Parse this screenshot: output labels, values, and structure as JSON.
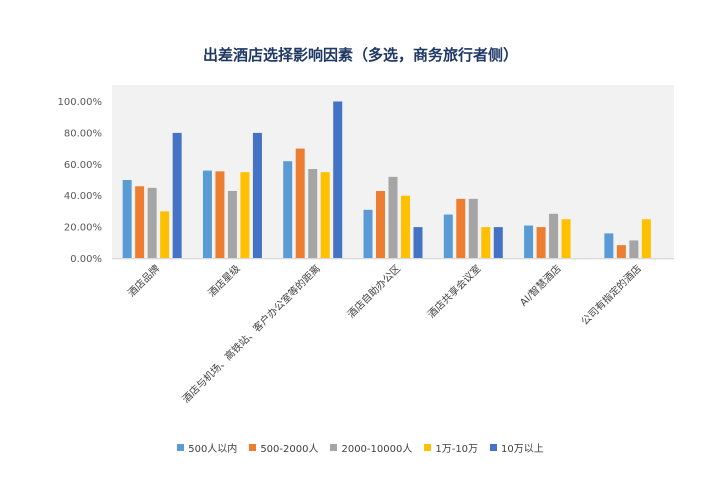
{
  "chart_data": {
    "type": "bar",
    "title": "出差酒店选择影响因素（多选，商务旅行者侧）",
    "categories": [
      "酒店品牌",
      "酒店星级",
      "酒店与机场、高铁站、客户办公室等的距离",
      "酒店自助办公区",
      "酒店共享会议室",
      "AI/智慧酒店",
      "公司有指定的酒店"
    ],
    "series": [
      {
        "name": "500人以内",
        "color": "#5b9bd5",
        "values": [
          0.5,
          0.56,
          0.62,
          0.31,
          0.28,
          0.21,
          0.16
        ]
      },
      {
        "name": "500-2000人",
        "color": "#ed7d31",
        "values": [
          0.46,
          0.555,
          0.7,
          0.43,
          0.38,
          0.2,
          0.085
        ]
      },
      {
        "name": "2000-10000人",
        "color": "#a5a5a5",
        "values": [
          0.45,
          0.43,
          0.57,
          0.52,
          0.38,
          0.285,
          0.115
        ]
      },
      {
        "name": "1万-10万",
        "color": "#ffc000",
        "values": [
          0.3,
          0.55,
          0.55,
          0.4,
          0.2,
          0.25,
          0.25
        ]
      },
      {
        "name": "10万以上",
        "color": "#4472c4",
        "values": [
          0.8,
          0.8,
          1.0,
          0.2,
          0.2,
          null,
          null
        ]
      }
    ],
    "yticks": [
      "0.00%",
      "20.00%",
      "40.00%",
      "60.00%",
      "80.00%",
      "100.00%"
    ],
    "ylim": [
      0,
      1
    ],
    "grid": false,
    "legend_position": "bottom"
  }
}
